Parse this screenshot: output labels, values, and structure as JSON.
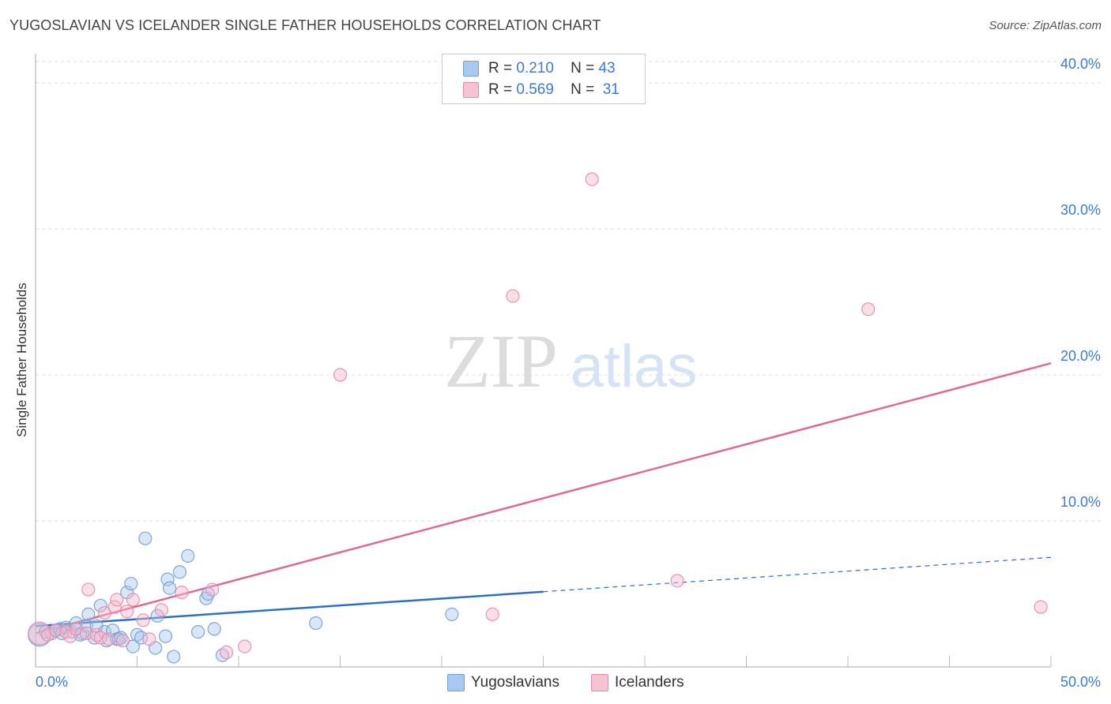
{
  "title": "YUGOSLAVIAN VS ICELANDER SINGLE FATHER HOUSEHOLDS CORRELATION CHART",
  "source": "Source: ZipAtlas.com",
  "watermark": {
    "zip": "ZIP",
    "atlas": "atlas"
  },
  "legend": {
    "rows": [
      {
        "r_label": "R =",
        "r_value": "0.210",
        "n_label": "N =",
        "n_value": "43"
      },
      {
        "r_label": "R =",
        "r_value": "0.569",
        "n_label": "N =",
        "n_value": "31"
      }
    ]
  },
  "bottom_legend": {
    "series1": "Yugoslavians",
    "series2": "Icelanders"
  },
  "colors": {
    "blue_fill": "#a9c8f0",
    "blue_stroke": "#6f9fd8",
    "blue_line": "#2a6fc9",
    "pink_fill": "#f6b8ca",
    "pink_stroke": "#e88aa8",
    "pink_line": "#e06892",
    "tick_text": "#3a7bd5",
    "grid": "#dddddd"
  },
  "chart_data": {
    "type": "scatter",
    "title": "YUGOSLAVIAN VS ICELANDER SINGLE FATHER HOUSEHOLDS CORRELATION CHART",
    "xlabel": "",
    "ylabel": "Single Father Households",
    "xlim": [
      0,
      50
    ],
    "ylim": [
      0,
      42
    ],
    "x_tick_labels": [
      "0.0%",
      "50.0%"
    ],
    "y_ticks": [
      10,
      20,
      30,
      40
    ],
    "y_tick_labels": [
      "10.0%",
      "20.0%",
      "30.0%",
      "40.0%"
    ],
    "series": [
      {
        "name": "Yugoslavians",
        "R": 0.21,
        "N": 43,
        "trend": {
          "x0": 0,
          "y0": 2.8,
          "x_solid_end": 25,
          "x_end": 50,
          "y_end": 7.5
        },
        "points": [
          [
            0.2,
            2.2,
            1.8
          ],
          [
            0.5,
            2.4,
            1
          ],
          [
            0.8,
            2.3,
            1
          ],
          [
            1.0,
            2.5,
            1
          ],
          [
            1.2,
            2.6,
            1
          ],
          [
            1.5,
            2.7,
            1
          ],
          [
            1.8,
            2.4,
            1
          ],
          [
            2.0,
            3.0,
            1
          ],
          [
            2.3,
            2.3,
            1
          ],
          [
            2.5,
            2.8,
            1
          ],
          [
            2.6,
            3.6,
            1
          ],
          [
            2.9,
            2.0,
            1
          ],
          [
            3.0,
            2.8,
            1
          ],
          [
            3.2,
            4.2,
            1
          ],
          [
            3.4,
            2.4,
            1
          ],
          [
            3.5,
            1.8,
            1
          ],
          [
            3.8,
            2.5,
            1
          ],
          [
            4.0,
            1.9,
            1
          ],
          [
            4.2,
            2.0,
            1
          ],
          [
            4.5,
            5.1,
            1
          ],
          [
            4.7,
            5.7,
            1
          ],
          [
            4.8,
            1.4,
            1
          ],
          [
            5.0,
            2.2,
            1
          ],
          [
            5.2,
            2.0,
            1
          ],
          [
            5.4,
            8.8,
            1
          ],
          [
            5.9,
            1.3,
            1
          ],
          [
            6.0,
            3.5,
            1
          ],
          [
            6.4,
            2.1,
            1
          ],
          [
            6.5,
            6.0,
            1
          ],
          [
            6.6,
            5.4,
            1
          ],
          [
            6.8,
            0.7,
            1
          ],
          [
            7.1,
            6.5,
            1
          ],
          [
            7.5,
            7.6,
            1
          ],
          [
            8.0,
            2.4,
            1
          ],
          [
            8.4,
            4.7,
            1
          ],
          [
            8.5,
            5.0,
            1
          ],
          [
            8.8,
            2.6,
            1
          ],
          [
            9.2,
            0.8,
            1
          ],
          [
            13.8,
            3.0,
            1
          ],
          [
            20.5,
            3.6,
            1
          ],
          [
            1.3,
            2.3,
            1
          ],
          [
            2.2,
            2.2,
            1
          ],
          [
            4.1,
            1.9,
            1
          ]
        ]
      },
      {
        "name": "Icelanders",
        "R": 0.569,
        "N": 31,
        "trend": {
          "x0": 0,
          "y0": 2.3,
          "x_end": 50,
          "y_end": 20.8
        },
        "points": [
          [
            0.2,
            2.3,
            1.8
          ],
          [
            0.6,
            2.2,
            1
          ],
          [
            1.0,
            2.5,
            1
          ],
          [
            1.5,
            2.4,
            1
          ],
          [
            1.7,
            2.1,
            1
          ],
          [
            2.0,
            2.6,
            1
          ],
          [
            2.5,
            2.3,
            1
          ],
          [
            2.6,
            5.3,
            1
          ],
          [
            3.0,
            2.2,
            1
          ],
          [
            3.2,
            2.0,
            1
          ],
          [
            3.4,
            3.7,
            1
          ],
          [
            3.6,
            1.9,
            1
          ],
          [
            3.9,
            4.1,
            1
          ],
          [
            4.0,
            4.6,
            1
          ],
          [
            4.3,
            1.8,
            1
          ],
          [
            4.5,
            3.8,
            1
          ],
          [
            4.8,
            4.6,
            1
          ],
          [
            5.3,
            3.2,
            1
          ],
          [
            5.6,
            1.9,
            1
          ],
          [
            6.2,
            3.9,
            1
          ],
          [
            7.2,
            5.1,
            1
          ],
          [
            8.7,
            5.3,
            1
          ],
          [
            9.4,
            1.0,
            1
          ],
          [
            10.3,
            1.4,
            1
          ],
          [
            15.0,
            20.0,
            1
          ],
          [
            22.5,
            3.6,
            1
          ],
          [
            23.5,
            25.4,
            1
          ],
          [
            27.4,
            33.4,
            1
          ],
          [
            31.6,
            5.9,
            1
          ],
          [
            41.0,
            24.5,
            1
          ],
          [
            49.5,
            4.1,
            1
          ]
        ]
      }
    ]
  }
}
